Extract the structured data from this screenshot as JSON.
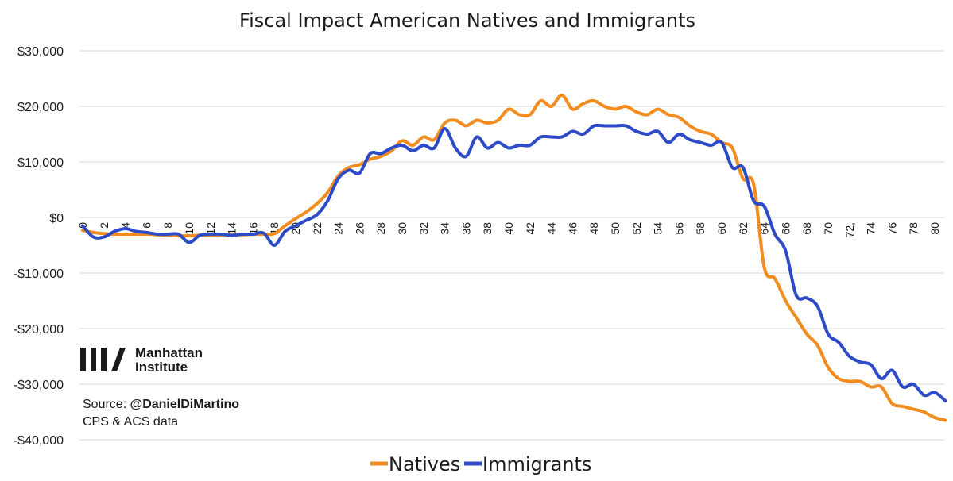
{
  "chart_data": {
    "type": "line",
    "title": "Fiscal Impact American Natives and Immigrants",
    "xlabel": "",
    "ylabel": "",
    "ylim": [
      -40000,
      30000
    ],
    "xlim": [
      0,
      81
    ],
    "yticks": [
      30000,
      20000,
      10000,
      0,
      -10000,
      -20000,
      -30000,
      -40000
    ],
    "ytick_labels": [
      "$30,000",
      "$20,000",
      "$10,000",
      "$0",
      "-$10,000",
      "-$20,000",
      "-$30,000",
      "-$40,000"
    ],
    "xticks": [
      0,
      2,
      4,
      6,
      8,
      10,
      12,
      14,
      16,
      18,
      20,
      22,
      24,
      26,
      28,
      30,
      32,
      34,
      36,
      38,
      40,
      42,
      44,
      46,
      48,
      50,
      52,
      54,
      56,
      58,
      60,
      62,
      64,
      66,
      68,
      70,
      72,
      74,
      76,
      78,
      80
    ],
    "xtick_labels": [
      "0",
      "2",
      "4",
      "6",
      "8",
      "10",
      "12",
      "14",
      "16",
      "18",
      "20",
      "22",
      "24",
      "26",
      "28",
      "30",
      "32",
      "34",
      "36",
      "38",
      "40",
      "42",
      "44",
      "46",
      "48",
      "50",
      "52",
      "54",
      "56",
      "58",
      "60",
      "62",
      "64",
      "66",
      "68",
      "70",
      "72,",
      "74",
      "76",
      "78",
      "80"
    ],
    "grid": true,
    "legend_position": "bottom-center",
    "x": [
      0,
      1,
      2,
      3,
      4,
      5,
      6,
      7,
      8,
      9,
      10,
      11,
      12,
      13,
      14,
      15,
      16,
      17,
      18,
      19,
      20,
      21,
      22,
      23,
      24,
      25,
      26,
      27,
      28,
      29,
      30,
      31,
      32,
      33,
      34,
      35,
      36,
      37,
      38,
      39,
      40,
      41,
      42,
      43,
      44,
      45,
      46,
      47,
      48,
      49,
      50,
      51,
      52,
      53,
      54,
      55,
      56,
      57,
      58,
      59,
      60,
      61,
      62,
      63,
      64,
      65,
      66,
      67,
      68,
      69,
      70,
      71,
      72,
      73,
      74,
      75,
      76,
      77,
      78,
      79,
      80,
      81
    ],
    "series": [
      {
        "name": "Natives",
        "color": "#F28C1E",
        "values": [
          -2300,
          -2700,
          -2900,
          -3000,
          -3000,
          -3000,
          -3000,
          -3100,
          -3200,
          -3300,
          -3300,
          -3200,
          -3200,
          -3200,
          -3100,
          -3100,
          -3000,
          -3000,
          -2900,
          -1500,
          -200,
          1000,
          2500,
          4500,
          7500,
          9000,
          9500,
          10500,
          11000,
          12000,
          13800,
          13000,
          14500,
          14000,
          17000,
          17500,
          16500,
          17500,
          17000,
          17500,
          19500,
          18500,
          18500,
          21000,
          20000,
          22000,
          19500,
          20500,
          21000,
          20000,
          19500,
          20000,
          19000,
          18500,
          19500,
          18500,
          18000,
          16500,
          15500,
          15000,
          13500,
          12500,
          7000,
          6000,
          -9000,
          -11000,
          -15000,
          -18000,
          -21000,
          -23000,
          -27000,
          -29000,
          -29500,
          -29500,
          -30500,
          -30500,
          -33500,
          -34000,
          -34500,
          -35000,
          -36000,
          -36500
        ]
      },
      {
        "name": "Immigrants",
        "color": "#2E4BC7",
        "values": [
          -1500,
          -3500,
          -3500,
          -2500,
          -2000,
          -2500,
          -2700,
          -3000,
          -3000,
          -3000,
          -4500,
          -3200,
          -3000,
          -3000,
          -3200,
          -3000,
          -3000,
          -2800,
          -5000,
          -2500,
          -1500,
          -500,
          500,
          3000,
          7000,
          8500,
          8000,
          11500,
          11500,
          12500,
          13000,
          12000,
          13000,
          12500,
          16000,
          12500,
          11000,
          14500,
          12500,
          13500,
          12500,
          13000,
          13000,
          14500,
          14500,
          14500,
          15500,
          15000,
          16500,
          16500,
          16500,
          16500,
          15500,
          15000,
          15500,
          13500,
          15000,
          14000,
          13500,
          13000,
          13500,
          9000,
          9000,
          3000,
          2000,
          -3000,
          -6000,
          -14000,
          -14500,
          -16000,
          -21000,
          -22500,
          -25000,
          -26000,
          -26500,
          -29000,
          -27500,
          -30500,
          -30000,
          -32000,
          -31500,
          -33000
        ]
      }
    ]
  },
  "branding": {
    "logo_line1": "Manhattan",
    "logo_line2": "Institute",
    "source_prefix": "Source: ",
    "source_handle": "@DanielDiMartino",
    "source_note": "CPS & ACS data"
  }
}
